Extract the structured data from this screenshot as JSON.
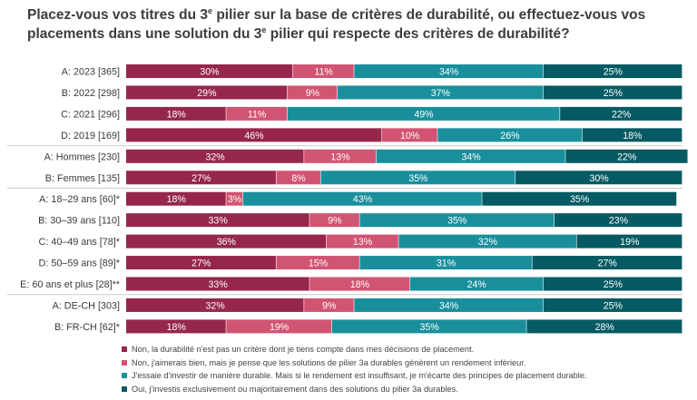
{
  "chart_data": {
    "type": "bar",
    "orientation": "horizontal",
    "stacked": true,
    "normalized_percent": true,
    "title": {
      "line1_prefix": "Placez-vous vos titres du 3",
      "line1_sup": "e",
      "line1_suffix": " pilier sur la base de critères de durabilité, ou effectuez-vous vos",
      "line2_prefix": "placements dans une solution du 3",
      "line2_sup": "e",
      "line2_suffix": " pilier qui respecte des critères de durabilité?"
    },
    "categories": [
      "A: 2023 [365]",
      "B: 2022 [298]",
      "C: 2021 [296]",
      "D: 2019 [169]",
      "A: Hommes [230]",
      "B: Femmes [135]",
      "A: 18–29 ans [60]*",
      "B: 30–39 ans [110]",
      "C: 40–49 ans [78]*",
      "D: 50–59 ans [89]*",
      "E: 60 ans et plus [28]**",
      "A: DE-CH [303]",
      "B: FR-CH [62]*"
    ],
    "groups": [
      [
        0,
        3
      ],
      [
        4,
        5
      ],
      [
        6,
        10
      ],
      [
        11,
        12
      ]
    ],
    "series": [
      {
        "name": "Non, la durabilité n'est pas un critère dont je tiens compte dans mes décisions de placement.",
        "color": "#96274a",
        "values": [
          30,
          29,
          18,
          46,
          32,
          27,
          18,
          33,
          36,
          27,
          33,
          32,
          18
        ]
      },
      {
        "name": "Non, j'aimerais bien, mais je pense que les solutions de pilier 3a durables génèrent un rendement inférieur.",
        "color": "#d25473",
        "values": [
          11,
          9,
          11,
          10,
          13,
          8,
          3,
          9,
          13,
          15,
          18,
          9,
          19
        ]
      },
      {
        "name": "J'essaie d'investir de manière durable. Mais si le rendement est insuffisant, je m'écarte des principes de placement durable.",
        "color": "#1a8f9c",
        "values": [
          34,
          37,
          49,
          26,
          34,
          35,
          43,
          35,
          32,
          31,
          24,
          34,
          35
        ]
      },
      {
        "name": "Oui, j'investis exclusivement ou majoritairement dans des solutions du pilier 3a durables.",
        "color": "#055a63",
        "values": [
          25,
          25,
          22,
          18,
          22,
          30,
          35,
          23,
          19,
          27,
          25,
          25,
          28
        ]
      }
    ],
    "value_suffix": "%",
    "xlim": [
      0,
      100
    ],
    "legend_position": "bottom"
  }
}
